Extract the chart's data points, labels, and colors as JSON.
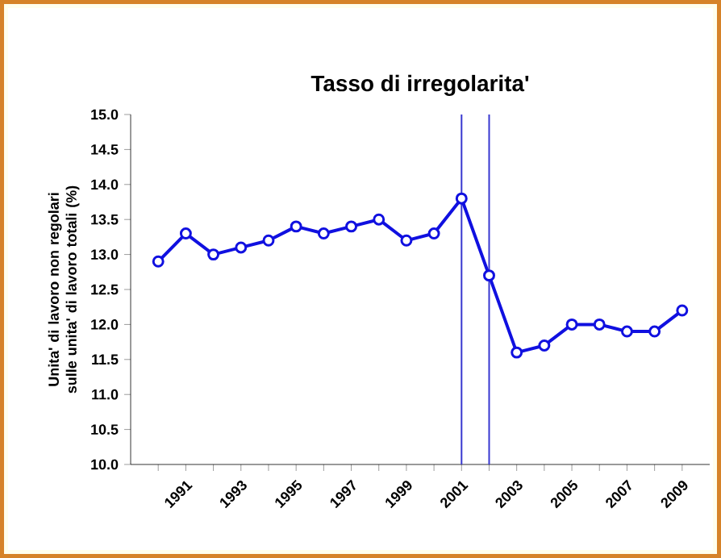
{
  "chart_data": {
    "type": "line",
    "title": "Tasso di irregolarita'",
    "ylabel": "Unita' di lavoro non regolari sulle unita' di lavoro totali (%)",
    "x": [
      1990,
      1991,
      1992,
      1993,
      1994,
      1995,
      1996,
      1997,
      1998,
      1999,
      2000,
      2001,
      2002,
      2003,
      2004,
      2005,
      2006,
      2007,
      2008,
      2009
    ],
    "series": [
      {
        "color": "#1010e0",
        "values": [
          12.9,
          13.3,
          13.0,
          13.1,
          13.2,
          13.4,
          13.3,
          13.4,
          13.5,
          13.2,
          13.3,
          13.8,
          12.7,
          11.6,
          11.7,
          12.0,
          12.0,
          11.9,
          11.9,
          12.2
        ]
      }
    ],
    "xlim": [
      1989,
      2010
    ],
    "xticks": [
      {
        "value": 1990,
        "label": null
      },
      1991,
      {
        "value": 1992,
        "label": null
      },
      1993,
      {
        "value": 1994,
        "label": null
      },
      1995,
      {
        "value": 1996,
        "label": null
      },
      1997,
      {
        "value": 1998,
        "label": null
      },
      1999,
      {
        "value": 2000,
        "label": null
      },
      2001,
      {
        "value": 2002,
        "label": null
      },
      2003,
      {
        "value": 2004,
        "label": null
      },
      2005,
      {
        "value": 2006,
        "label": null
      },
      2007,
      {
        "value": 2008,
        "label": null
      },
      2009
    ],
    "ylim": [
      10,
      15
    ],
    "yticks": [
      {
        "value": 10,
        "label": "10.0"
      },
      10.5,
      {
        "value": 11,
        "label": "11.0"
      },
      11.5,
      {
        "value": 12,
        "label": "12.0"
      },
      12.5,
      {
        "value": 13,
        "label": "13.0"
      },
      13.5,
      {
        "value": 14,
        "label": "14.0"
      },
      14.5,
      {
        "value": 15,
        "label": "15.0"
      }
    ],
    "ref_lines": [
      {
        "axis": "x",
        "value": 2001,
        "color": "#3838d0"
      },
      {
        "axis": "x",
        "value": 2002,
        "color": "#3838d0"
      }
    ],
    "marker": "circle",
    "line_style": "solid"
  }
}
